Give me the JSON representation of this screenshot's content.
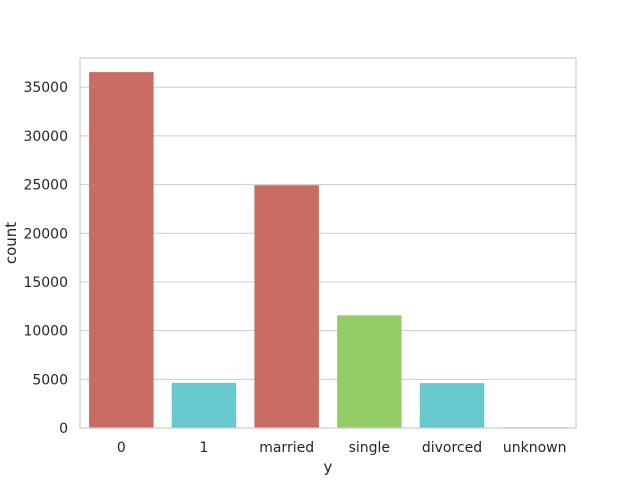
{
  "chart_data": {
    "type": "bar",
    "categories": [
      "0",
      "1",
      "married",
      "single",
      "divorced",
      "unknown"
    ],
    "values": [
      36550,
      4640,
      24930,
      11570,
      4610,
      80
    ],
    "colors": [
      "#c96d64",
      "#c96d64",
      "#c96d64",
      "#c96d64",
      "#c96d64",
      "#c96d64"
    ],
    "bar_colors": [
      "#c96d64",
      "#67c8ce",
      "#c96d64",
      "#92cd65",
      "#67c8ce",
      "#67c8ce"
    ],
    "xlabel": "y",
    "ylabel": "count",
    "ylim": [
      0,
      38000
    ],
    "yticks": [
      0,
      5000,
      10000,
      15000,
      20000,
      25000,
      30000,
      35000
    ],
    "grid": true
  }
}
